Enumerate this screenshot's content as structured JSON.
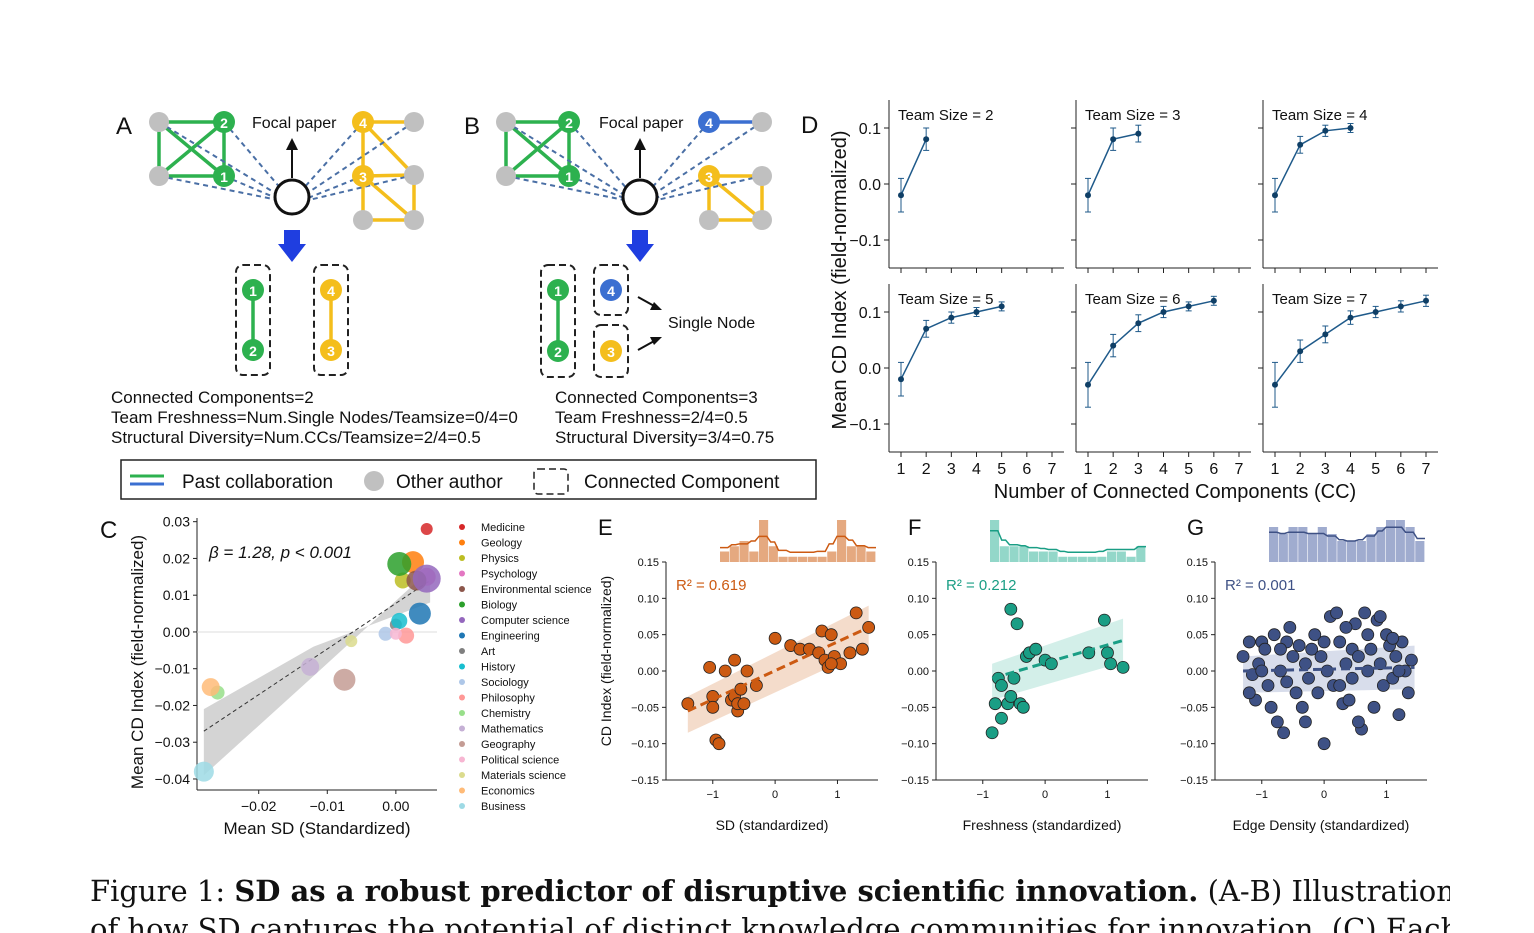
{
  "panel_labels": {
    "A": "A",
    "B": "B",
    "C": "C",
    "D": "D",
    "E": "E",
    "F": "F",
    "G": "G"
  },
  "panelA": {
    "focal_label": "Focal paper",
    "lines": [
      "Connected Components=2",
      "Team Freshness=Num.Single Nodes/Teamsize=0/4=0",
      "Structural Diversity=Num.CCs/Teamsize=2/4=0.5"
    ]
  },
  "panelB": {
    "focal_label": "Focal paper",
    "single_node_label": "Single Node",
    "lines": [
      "Connected Components=3",
      "Team Freshness=2/4=0.5",
      "Structural Diversity=3/4=0.75"
    ]
  },
  "legend_ab": {
    "past": "Past collaboration",
    "other": "Other author",
    "cc": "Connected Component"
  },
  "panelD": {
    "ylabel": "Mean CD Index (field-normalized)",
    "xlabel": "Number of Connected Components (CC)",
    "subplots": [
      {
        "title": "Team Size = 2",
        "x": [
          1,
          2
        ],
        "y": [
          -0.02,
          0.08
        ],
        "err": [
          0.03,
          0.02
        ]
      },
      {
        "title": "Team Size = 3",
        "x": [
          1,
          2,
          3
        ],
        "y": [
          -0.02,
          0.08,
          0.09
        ],
        "err": [
          0.03,
          0.02,
          0.015
        ]
      },
      {
        "title": "Team Size = 4",
        "x": [
          1,
          2,
          3,
          4
        ],
        "y": [
          -0.02,
          0.07,
          0.095,
          0.1
        ],
        "err": [
          0.03,
          0.015,
          0.01,
          0.008
        ]
      },
      {
        "title": "Team Size = 5",
        "x": [
          1,
          2,
          3,
          4,
          5
        ],
        "y": [
          -0.02,
          0.07,
          0.09,
          0.1,
          0.11
        ],
        "err": [
          0.03,
          0.015,
          0.01,
          0.008,
          0.008
        ]
      },
      {
        "title": "Team Size = 6",
        "x": [
          1,
          2,
          3,
          4,
          5,
          6
        ],
        "y": [
          -0.03,
          0.04,
          0.08,
          0.1,
          0.11,
          0.12
        ],
        "err": [
          0.04,
          0.02,
          0.015,
          0.01,
          0.008,
          0.008
        ]
      },
      {
        "title": "Team Size = 7",
        "x": [
          1,
          2,
          3,
          4,
          5,
          6,
          7
        ],
        "y": [
          -0.03,
          0.03,
          0.06,
          0.09,
          0.1,
          0.11,
          0.12
        ],
        "err": [
          0.04,
          0.02,
          0.015,
          0.012,
          0.01,
          0.01,
          0.01
        ]
      }
    ],
    "yticks": [
      "0.1",
      "0.0",
      "−0.1"
    ],
    "xticks": [
      "1",
      "2",
      "3",
      "4",
      "5",
      "6",
      "7"
    ]
  },
  "chart_data": [
    {
      "type": "scatter",
      "id": "C",
      "xlabel": "Mean SD (Standardized)",
      "ylabel": "Mean CD Index (field-normalized)",
      "annotation": "β = 1.28, p < 0.001",
      "xlim": [
        -0.029,
        0.006
      ],
      "ylim": [
        -0.043,
        0.031
      ],
      "xticks": [
        "−0.02",
        "−0.01",
        "0.00"
      ],
      "yticks": [
        "0.03",
        "0.02",
        "0.01",
        "0.00",
        "−0.01",
        "−0.02",
        "−0.03",
        "−0.04"
      ],
      "points": [
        {
          "name": "Medicine",
          "x": 0.0045,
          "y": 0.028,
          "color": "#d62728",
          "size": 6
        },
        {
          "name": "Geology",
          "x": 0.0025,
          "y": 0.019,
          "color": "#ff7f0e",
          "size": 11
        },
        {
          "name": "Physics",
          "x": 0.001,
          "y": 0.014,
          "color": "#bcbd22",
          "size": 8
        },
        {
          "name": "Psychology",
          "x": 0.0045,
          "y": 0.015,
          "color": "#e377c2",
          "size": 9
        },
        {
          "name": "Environmental science",
          "x": 0.003,
          "y": 0.014,
          "color": "#8c564b",
          "size": 10
        },
        {
          "name": "Biology",
          "x": 0.0005,
          "y": 0.0185,
          "color": "#2ca02c",
          "size": 12
        },
        {
          "name": "Computer science",
          "x": 0.0045,
          "y": 0.0145,
          "color": "#9467bd",
          "size": 14
        },
        {
          "name": "Engineering",
          "x": 0.0035,
          "y": 0.005,
          "color": "#1f77b4",
          "size": 11
        },
        {
          "name": "Art",
          "x": 0.0,
          "y": 0.002,
          "color": "#7f7f7f",
          "size": 6
        },
        {
          "name": "History",
          "x": 0.0005,
          "y": 0.003,
          "color": "#17becf",
          "size": 8
        },
        {
          "name": "Sociology",
          "x": -0.0015,
          "y": -0.0005,
          "color": "#aec7e8",
          "size": 7
        },
        {
          "name": "Philosophy",
          "x": 0.0015,
          "y": -0.001,
          "color": "#ff9896",
          "size": 8
        },
        {
          "name": "Chemistry",
          "x": -0.026,
          "y": -0.0165,
          "color": "#98df8a",
          "size": 7
        },
        {
          "name": "Mathematics",
          "x": -0.0125,
          "y": -0.0095,
          "color": "#c5b0d5",
          "size": 9
        },
        {
          "name": "Geography",
          "x": -0.0075,
          "y": -0.013,
          "color": "#c49c94",
          "size": 11
        },
        {
          "name": "Political science",
          "x": 0.0,
          "y": -0.0005,
          "color": "#f7b6d2",
          "size": 6
        },
        {
          "name": "Materials science",
          "x": -0.0065,
          "y": -0.0025,
          "color": "#dbdb8d",
          "size": 6
        },
        {
          "name": "Economics",
          "x": -0.027,
          "y": -0.015,
          "color": "#ffbb78",
          "size": 9
        },
        {
          "name": "Business",
          "x": -0.028,
          "y": -0.038,
          "color": "#9edae5",
          "size": 10
        }
      ],
      "fit": {
        "x0": -0.028,
        "y0": -0.027,
        "x1": 0.005,
        "y1": 0.014
      }
    },
    {
      "type": "scatter",
      "id": "E",
      "xlabel": "SD (standardized)",
      "ylabel": "CD Index (field-normalized)",
      "annotation": "R² = 0.619",
      "color": "#cc5a12",
      "fill": "#e09a6a",
      "xlim": [
        -1.75,
        1.65
      ],
      "ylim": [
        -0.15,
        0.15
      ],
      "xticks": [
        -1,
        0,
        1
      ],
      "yticks": [
        0.15,
        0.1,
        0.05,
        0.0,
        -0.05,
        -0.1,
        -0.15
      ],
      "fit": {
        "x0": -1.4,
        "y0": -0.055,
        "x1": 1.5,
        "y1": 0.06
      },
      "hist": [
        2,
        3,
        4,
        2,
        8,
        3,
        1,
        1,
        1,
        1,
        1,
        2,
        8,
        3,
        3,
        2
      ],
      "points": [
        [
          -1.4,
          -0.045
        ],
        [
          -1.0,
          -0.035
        ],
        [
          -1.0,
          -0.05
        ],
        [
          -1.05,
          0.005
        ],
        [
          -0.95,
          -0.095
        ],
        [
          -0.9,
          -0.1
        ],
        [
          -0.8,
          0.0
        ],
        [
          -0.7,
          -0.04
        ],
        [
          -0.65,
          -0.035
        ],
        [
          -0.6,
          -0.055
        ],
        [
          -0.6,
          -0.045
        ],
        [
          -0.65,
          0.015
        ],
        [
          -0.55,
          -0.025
        ],
        [
          -0.5,
          -0.045
        ],
        [
          -0.45,
          0.0
        ],
        [
          -0.3,
          -0.02
        ],
        [
          0.0,
          0.045
        ],
        [
          0.25,
          0.035
        ],
        [
          0.4,
          0.03
        ],
        [
          0.55,
          0.03
        ],
        [
          0.7,
          0.025
        ],
        [
          0.75,
          0.055
        ],
        [
          0.8,
          0.015
        ],
        [
          0.85,
          0.005
        ],
        [
          0.9,
          0.05
        ],
        [
          0.95,
          0.02
        ],
        [
          1.05,
          0.01
        ],
        [
          1.2,
          0.025
        ],
        [
          1.3,
          0.08
        ],
        [
          1.4,
          0.03
        ],
        [
          1.5,
          0.06
        ],
        [
          0.9,
          0.01
        ]
      ]
    },
    {
      "type": "scatter",
      "id": "F",
      "xlabel": "Freshness (standardized)",
      "ylabel": "",
      "annotation": "R² = 0.212",
      "color": "#1a9e85",
      "fill": "#80d0bf",
      "xlim": [
        -1.75,
        1.65
      ],
      "ylim": [
        -0.15,
        0.15
      ],
      "xticks": [
        -1,
        0,
        1
      ],
      "yticks": [
        0.15,
        0.1,
        0.05,
        0.0,
        -0.05,
        -0.1,
        -0.15
      ],
      "fit": {
        "x0": -0.85,
        "y0": -0.01,
        "x1": 1.25,
        "y1": 0.042
      },
      "hist": [
        8,
        3,
        3,
        3,
        2,
        2,
        2,
        1,
        1,
        1,
        1,
        1,
        2,
        2,
        1,
        3
      ],
      "points": [
        [
          -0.85,
          -0.085
        ],
        [
          -0.8,
          -0.045
        ],
        [
          -0.75,
          -0.01
        ],
        [
          -0.7,
          -0.02
        ],
        [
          -0.7,
          -0.065
        ],
        [
          -0.6,
          -0.045
        ],
        [
          -0.55,
          -0.035
        ],
        [
          -0.5,
          -0.01
        ],
        [
          -0.55,
          0.085
        ],
        [
          -0.45,
          0.065
        ],
        [
          -0.4,
          -0.045
        ],
        [
          -0.35,
          -0.05
        ],
        [
          -0.3,
          0.02
        ],
        [
          -0.25,
          0.025
        ],
        [
          -0.15,
          0.03
        ],
        [
          0.0,
          0.015
        ],
        [
          0.1,
          0.01
        ],
        [
          0.7,
          0.025
        ],
        [
          0.95,
          0.07
        ],
        [
          1.0,
          0.025
        ],
        [
          1.05,
          0.01
        ],
        [
          1.25,
          0.005
        ]
      ]
    },
    {
      "type": "scatter",
      "id": "G",
      "xlabel": "Edge Density (standardized)",
      "ylabel": "",
      "annotation": "R² = 0.001",
      "color": "#3e5185",
      "fill": "#8f9ec7",
      "xlim": [
        -1.75,
        1.65
      ],
      "ylim": [
        -0.15,
        0.15
      ],
      "xticks": [
        -1,
        0,
        1
      ],
      "yticks": [
        0.15,
        0.1,
        0.05,
        0.0,
        -0.05,
        -0.1,
        -0.15
      ],
      "fit": {
        "x0": -1.3,
        "y0": 0.0,
        "x1": 1.45,
        "y1": 0.005
      },
      "hist": [
        5,
        4,
        5,
        5,
        4,
        5,
        4,
        3,
        3,
        3,
        4,
        5,
        6,
        6,
        5,
        3
      ],
      "points": [
        [
          -1.3,
          0.02
        ],
        [
          -1.2,
          0.04
        ],
        [
          -1.1,
          -0.04
        ],
        [
          -1.2,
          -0.03
        ],
        [
          -1.05,
          0.01
        ],
        [
          -1.0,
          0.04
        ],
        [
          -0.95,
          0.03
        ],
        [
          -0.9,
          -0.02
        ],
        [
          -0.85,
          -0.05
        ],
        [
          -0.8,
          0.05
        ],
        [
          -0.75,
          -0.07
        ],
        [
          -0.7,
          0.0
        ],
        [
          -0.65,
          -0.085
        ],
        [
          -0.6,
          0.04
        ],
        [
          -0.55,
          0.06
        ],
        [
          -0.5,
          0.02
        ],
        [
          -0.45,
          -0.03
        ],
        [
          -0.4,
          0.035
        ],
        [
          -0.35,
          -0.05
        ],
        [
          -0.3,
          0.01
        ],
        [
          -0.25,
          -0.01
        ],
        [
          -0.2,
          0.03
        ],
        [
          -0.15,
          0.05
        ],
        [
          -0.1,
          -0.03
        ],
        [
          -0.05,
          0.02
        ],
        [
          0.0,
          -0.1
        ],
        [
          0.05,
          0.0
        ],
        [
          0.1,
          0.075
        ],
        [
          0.15,
          -0.02
        ],
        [
          0.2,
          0.08
        ],
        [
          0.25,
          0.04
        ],
        [
          0.3,
          -0.045
        ],
        [
          0.35,
          0.01
        ],
        [
          0.4,
          -0.04
        ],
        [
          0.45,
          0.03
        ],
        [
          0.5,
          0.065
        ],
        [
          0.55,
          0.02
        ],
        [
          0.6,
          -0.08
        ],
        [
          0.65,
          0.08
        ],
        [
          0.7,
          0.0
        ],
        [
          0.75,
          0.03
        ],
        [
          0.8,
          -0.05
        ],
        [
          0.85,
          0.07
        ],
        [
          0.9,
          0.01
        ],
        [
          0.95,
          -0.02
        ],
        [
          1.0,
          0.05
        ],
        [
          1.05,
          0.035
        ],
        [
          1.1,
          -0.01
        ],
        [
          1.15,
          0.02
        ],
        [
          1.2,
          -0.06
        ],
        [
          1.25,
          0.04
        ],
        [
          1.3,
          0.0
        ],
        [
          1.35,
          -0.03
        ],
        [
          1.4,
          0.015
        ],
        [
          -1.15,
          -0.005
        ],
        [
          -0.6,
          -0.015
        ],
        [
          0.35,
          0.06
        ],
        [
          0.55,
          -0.07
        ],
        [
          0.9,
          0.075
        ],
        [
          1.1,
          0.045
        ],
        [
          -0.3,
          -0.07
        ],
        [
          0.0,
          0.04
        ],
        [
          -1.0,
          0.0
        ],
        [
          0.25,
          -0.02
        ],
        [
          0.7,
          0.05
        ],
        [
          1.2,
          0.0
        ],
        [
          -0.7,
          0.03
        ],
        [
          0.45,
          -0.01
        ]
      ]
    }
  ],
  "panelC_legend": [
    "Medicine",
    "Geology",
    "Physics",
    "Psychology",
    "Environmental science",
    "Biology",
    "Computer science",
    "Engineering",
    "Art",
    "History",
    "Sociology",
    "Philosophy",
    "Chemistry",
    "Mathematics",
    "Geography",
    "Political science",
    "Materials science",
    "Economics",
    "Business"
  ],
  "caption": {
    "prefix": "Figure 1: ",
    "bold": "SD as a robust predictor of disruptive scientific innovation.",
    "rest": " (A-B) Illustration",
    "line2": "of how SD captures the potential of distinct knowledge communities for innovation. (C) Each"
  }
}
